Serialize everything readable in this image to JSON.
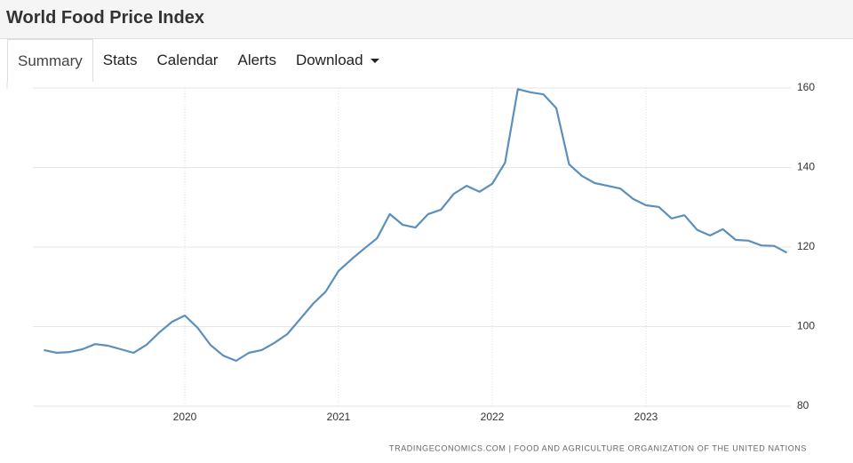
{
  "header": {
    "title": "World Food Price Index"
  },
  "tabs": [
    "Summary",
    "Stats",
    "Calendar",
    "Alerts",
    "Download"
  ],
  "chart_data": {
    "type": "line",
    "categories": [
      null,
      null,
      null,
      null,
      null,
      null,
      null,
      null,
      null,
      null,
      null,
      "2020",
      null,
      null,
      null,
      null,
      null,
      null,
      null,
      null,
      null,
      null,
      null,
      "2021",
      null,
      null,
      null,
      null,
      null,
      null,
      null,
      null,
      null,
      null,
      null,
      "2022",
      null,
      null,
      null,
      null,
      null,
      null,
      null,
      null,
      null,
      null,
      null,
      "2023",
      null,
      null,
      null,
      null,
      null,
      null,
      null,
      null,
      null,
      null,
      null
    ],
    "values": [
      94.1,
      93.4,
      93.6,
      94.3,
      95.6,
      95.2,
      94.3,
      93.4,
      95.4,
      98.5,
      101.2,
      102.8,
      99.7,
      95.4,
      92.7,
      91.4,
      93.4,
      94.1,
      95.9,
      98.1,
      101.9,
      105.7,
      108.8,
      114.0,
      116.9,
      119.6,
      122.2,
      128.3,
      125.6,
      124.9,
      128.3,
      129.4,
      133.4,
      135.4,
      133.9,
      135.9,
      141.2,
      159.7,
      158.9,
      158.4,
      154.9,
      140.8,
      137.9,
      136.1,
      135.4,
      134.7,
      132.1,
      130.5,
      130.1,
      127.2,
      128.0,
      124.3,
      122.9,
      124.5,
      121.8,
      121.6,
      120.4,
      120.3,
      118.6
    ],
    "color": "#5b8fbd",
    "ylim": [
      80,
      160
    ],
    "yticks": [
      80,
      100,
      120,
      140,
      160
    ],
    "grid": true,
    "source": "TRADINGECONOMICS.COM | FOOD AND AGRICULTURE ORGANIZATION OF THE UNITED NATIONS"
  }
}
